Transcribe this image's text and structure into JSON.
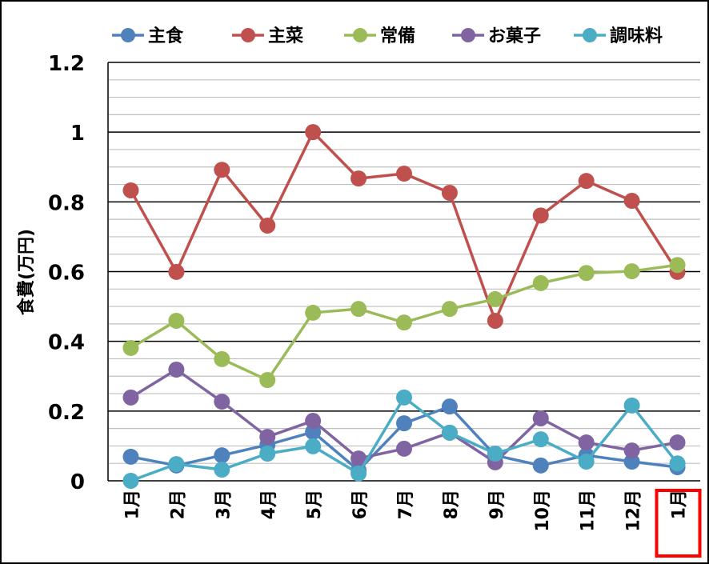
{
  "chart_data": {
    "type": "line",
    "title": "",
    "xlabel": "",
    "ylabel": "食費(万円)",
    "ylim": [
      0,
      1.2
    ],
    "yticks": [
      "0",
      "0.2",
      "0.4",
      "0.6",
      "0.8",
      "1",
      "1.2"
    ],
    "ytick_values": [
      0,
      0.2,
      0.4,
      0.6,
      0.8,
      1,
      1.2
    ],
    "minor_grid_step": 0.05,
    "grid": true,
    "legend_position": "top",
    "categories": [
      "1月",
      "2月",
      "3月",
      "4月",
      "5月",
      "6月",
      "7月",
      "8月",
      "9月",
      "10月",
      "11月",
      "12月",
      "1月"
    ],
    "highlight_category_index": 12,
    "highlight_color": "#ff0000",
    "series": [
      {
        "name": "主食",
        "color": "#4f81bd",
        "values": [
          0.069,
          0.044,
          0.073,
          0.103,
          0.14,
          0.03,
          0.165,
          0.213,
          0.073,
          0.044,
          0.073,
          0.055,
          0.039
        ]
      },
      {
        "name": "主菜",
        "color": "#c0504d",
        "values": [
          0.833,
          0.599,
          0.892,
          0.732,
          1.0,
          0.867,
          0.881,
          0.826,
          0.459,
          0.761,
          0.86,
          0.803,
          0.599
        ]
      },
      {
        "name": "常備",
        "color": "#9bbb59",
        "values": [
          0.381,
          0.459,
          0.349,
          0.289,
          0.482,
          0.493,
          0.454,
          0.493,
          0.521,
          0.567,
          0.596,
          0.601,
          0.619
        ]
      },
      {
        "name": "お菓子",
        "color": "#8064a2",
        "values": [
          0.239,
          0.319,
          0.227,
          0.126,
          0.172,
          0.064,
          0.092,
          0.138,
          0.053,
          0.179,
          0.11,
          0.087,
          0.11
        ]
      },
      {
        "name": "調味料",
        "color": "#4bacc6",
        "values": [
          0.0,
          0.048,
          0.032,
          0.078,
          0.099,
          0.021,
          0.239,
          0.138,
          0.078,
          0.119,
          0.055,
          0.216,
          0.05
        ]
      }
    ]
  }
}
